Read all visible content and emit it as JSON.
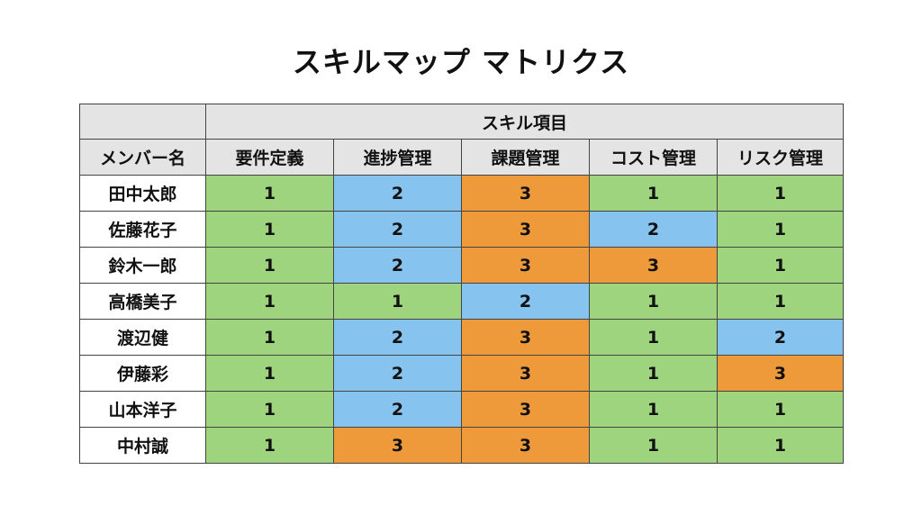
{
  "title": "スキルマップ マトリクス",
  "table": {
    "group_header": "スキル項目",
    "name_header": "メンバー名",
    "skills": [
      "要件定義",
      "進捗管理",
      "課題管理",
      "コスト管理",
      "リスク管理"
    ],
    "rows": [
      {
        "name": "田中太郎",
        "levels": [
          1,
          2,
          3,
          1,
          1
        ]
      },
      {
        "name": "佐藤花子",
        "levels": [
          1,
          2,
          3,
          2,
          1
        ]
      },
      {
        "name": "鈴木一郎",
        "levels": [
          1,
          2,
          3,
          3,
          1
        ]
      },
      {
        "name": "高橋美子",
        "levels": [
          1,
          1,
          2,
          1,
          1
        ]
      },
      {
        "name": "渡辺健",
        "levels": [
          1,
          2,
          3,
          1,
          2
        ]
      },
      {
        "name": "伊藤彩",
        "levels": [
          1,
          2,
          3,
          1,
          3
        ]
      },
      {
        "name": "山本洋子",
        "levels": [
          1,
          2,
          3,
          1,
          1
        ]
      },
      {
        "name": "中村誠",
        "levels": [
          1,
          3,
          3,
          1,
          1
        ]
      }
    ]
  },
  "level_colors": {
    "1": "#9fd47f",
    "2": "#86c3ee",
    "3": "#ef9a3a"
  },
  "header_color": "#e4e4e4"
}
